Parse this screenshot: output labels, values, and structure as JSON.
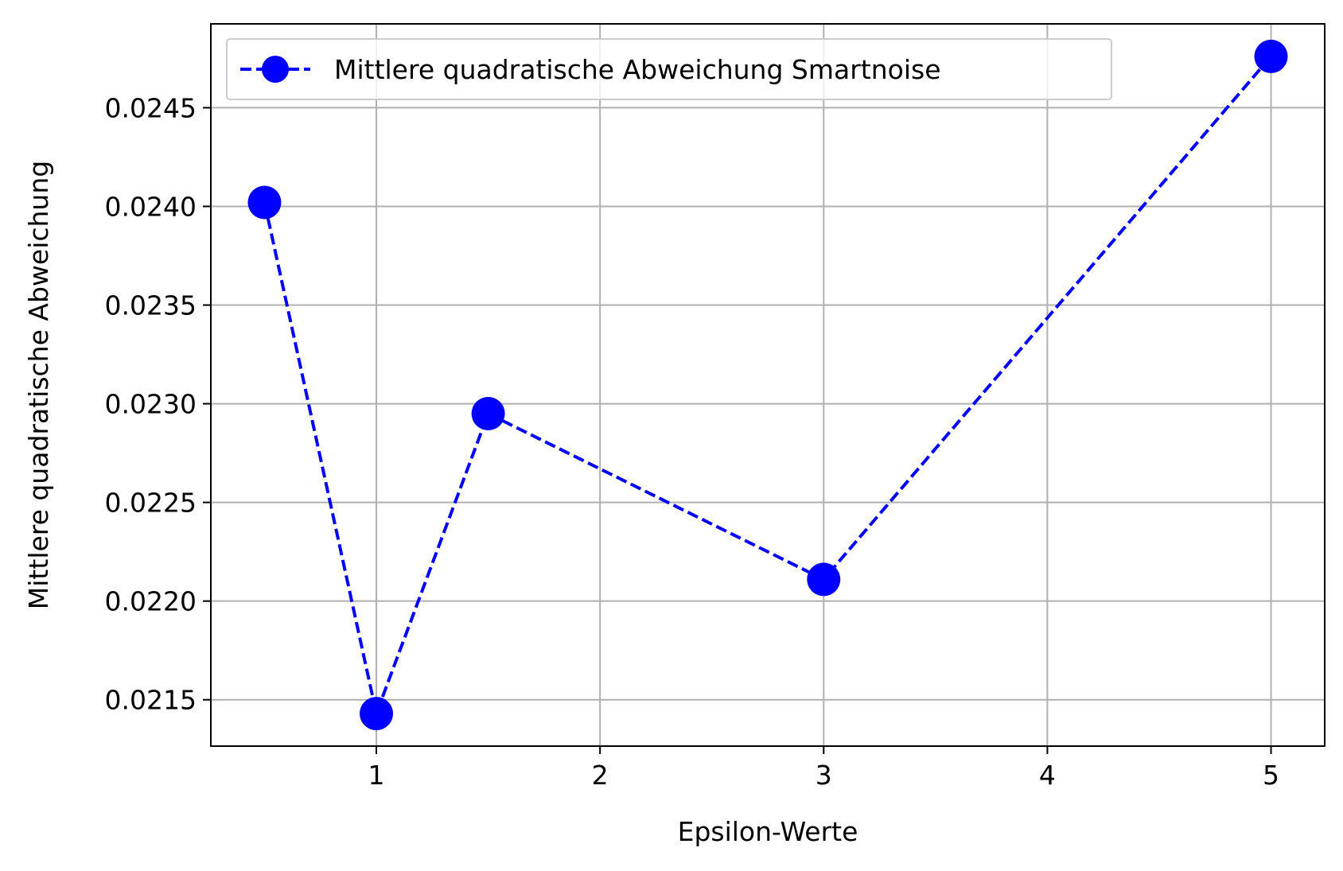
{
  "chart_data": {
    "type": "line",
    "title": "",
    "xlabel": "Epsilon-Werte",
    "ylabel": "Mittlere quadratische Abweichung",
    "xlim": [
      0.26,
      5.24
    ],
    "ylim": [
      0.021265,
      0.024925
    ],
    "xticks": [
      1,
      2,
      3,
      4,
      5
    ],
    "xtick_labels": [
      "1",
      "2",
      "3",
      "4",
      "5"
    ],
    "yticks": [
      0.0215,
      0.022,
      0.0225,
      0.023,
      0.0235,
      0.024,
      0.0245
    ],
    "ytick_labels": [
      "0.0215",
      "0.0220",
      "0.0225",
      "0.0230",
      "0.0235",
      "0.0240",
      "0.0245"
    ],
    "grid": true,
    "legend_position": "top-left",
    "series": [
      {
        "name": "Mittlere quadratische Abweichung Smartnoise",
        "color": "#0000ff",
        "line_style": "dashed",
        "marker": "circle",
        "x": [
          0.5,
          1,
          1.5,
          3,
          5
        ],
        "y": [
          0.02402,
          0.02143,
          0.02295,
          0.02211,
          0.02476
        ]
      }
    ]
  }
}
